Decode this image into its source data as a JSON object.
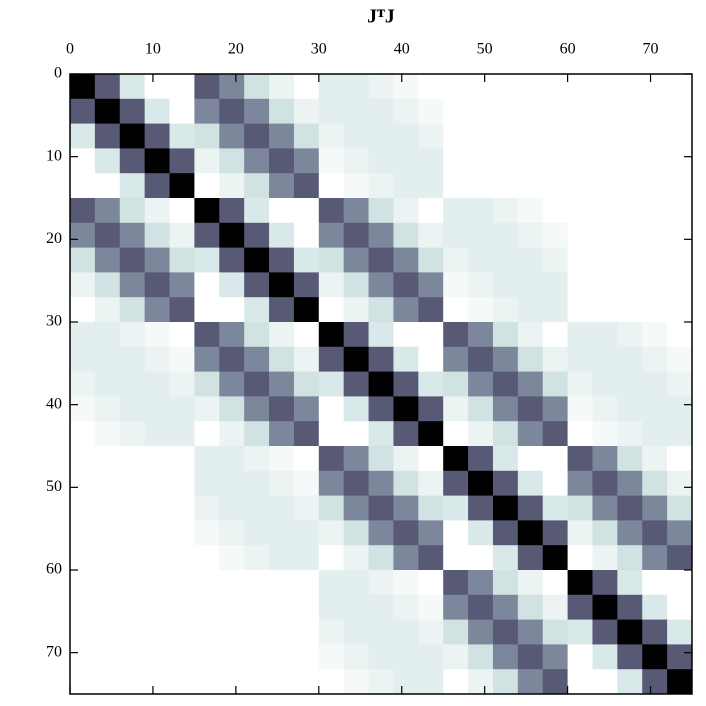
{
  "chart_data": {
    "type": "heatmap",
    "title": "JᵀJ",
    "colormap": "bone_r",
    "xlim": [
      0,
      75
    ],
    "ylim": [
      75,
      0
    ],
    "xticks": [
      0,
      10,
      20,
      30,
      40,
      50,
      60,
      70
    ],
    "yticks": [
      0,
      10,
      20,
      30,
      40,
      50,
      60,
      70
    ],
    "z": [
      [
        1,
        0.7,
        0.2,
        0,
        0,
        0.7,
        0.55,
        0.25,
        0.1,
        0,
        0.15,
        0.15,
        0.1,
        0.05,
        0,
        0,
        0,
        0,
        0,
        0,
        0,
        0,
        0,
        0,
        0
      ],
      [
        0.7,
        1,
        0.7,
        0.2,
        0,
        0.55,
        0.7,
        0.55,
        0.25,
        0.1,
        0.15,
        0.15,
        0.15,
        0.1,
        0.05,
        0,
        0,
        0,
        0,
        0,
        0,
        0,
        0,
        0,
        0
      ],
      [
        0.2,
        0.7,
        1,
        0.7,
        0.2,
        0.25,
        0.55,
        0.7,
        0.55,
        0.25,
        0.1,
        0.15,
        0.15,
        0.15,
        0.1,
        0,
        0,
        0,
        0,
        0,
        0,
        0,
        0,
        0,
        0
      ],
      [
        0,
        0.2,
        0.7,
        1,
        0.7,
        0.1,
        0.25,
        0.55,
        0.7,
        0.55,
        0.05,
        0.1,
        0.15,
        0.15,
        0.15,
        0,
        0,
        0,
        0,
        0,
        0,
        0,
        0,
        0,
        0
      ],
      [
        0,
        0,
        0.2,
        0.7,
        1,
        0,
        0.1,
        0.25,
        0.55,
        0.7,
        0,
        0.05,
        0.1,
        0.15,
        0.15,
        0,
        0,
        0,
        0,
        0,
        0,
        0,
        0,
        0,
        0
      ],
      [
        0.7,
        0.55,
        0.25,
        0.1,
        0,
        1,
        0.7,
        0.2,
        0,
        0,
        0.7,
        0.55,
        0.25,
        0.1,
        0,
        0.15,
        0.15,
        0.1,
        0.05,
        0,
        0,
        0,
        0,
        0,
        0
      ],
      [
        0.55,
        0.7,
        0.55,
        0.25,
        0.1,
        0.7,
        1,
        0.7,
        0.2,
        0,
        0.55,
        0.7,
        0.55,
        0.25,
        0.1,
        0.15,
        0.15,
        0.15,
        0.1,
        0.05,
        0,
        0,
        0,
        0,
        0
      ],
      [
        0.25,
        0.55,
        0.7,
        0.55,
        0.25,
        0.2,
        0.7,
        1,
        0.7,
        0.2,
        0.25,
        0.55,
        0.7,
        0.55,
        0.25,
        0.1,
        0.15,
        0.15,
        0.15,
        0.1,
        0,
        0,
        0,
        0,
        0
      ],
      [
        0.1,
        0.25,
        0.55,
        0.7,
        0.55,
        0,
        0.2,
        0.7,
        1,
        0.7,
        0.1,
        0.25,
        0.55,
        0.7,
        0.55,
        0.05,
        0.1,
        0.15,
        0.15,
        0.15,
        0,
        0,
        0,
        0,
        0
      ],
      [
        0,
        0.1,
        0.25,
        0.55,
        0.7,
        0,
        0,
        0.2,
        0.7,
        1,
        0,
        0.1,
        0.25,
        0.55,
        0.7,
        0,
        0.05,
        0.1,
        0.15,
        0.15,
        0,
        0,
        0,
        0,
        0
      ],
      [
        0.15,
        0.15,
        0.1,
        0.05,
        0,
        0.7,
        0.55,
        0.25,
        0.1,
        0,
        1,
        0.7,
        0.2,
        0,
        0,
        0.7,
        0.55,
        0.25,
        0.1,
        0,
        0.15,
        0.15,
        0.1,
        0.05,
        0
      ],
      [
        0.15,
        0.15,
        0.15,
        0.1,
        0.05,
        0.55,
        0.7,
        0.55,
        0.25,
        0.1,
        0.7,
        1,
        0.7,
        0.2,
        0,
        0.55,
        0.7,
        0.55,
        0.25,
        0.1,
        0.15,
        0.15,
        0.15,
        0.1,
        0.05
      ],
      [
        0.1,
        0.15,
        0.15,
        0.15,
        0.1,
        0.25,
        0.55,
        0.7,
        0.55,
        0.25,
        0.2,
        0.7,
        1,
        0.7,
        0.2,
        0.25,
        0.55,
        0.7,
        0.55,
        0.25,
        0.1,
        0.15,
        0.15,
        0.15,
        0.1
      ],
      [
        0.05,
        0.1,
        0.15,
        0.15,
        0.15,
        0.1,
        0.25,
        0.55,
        0.7,
        0.55,
        0,
        0.2,
        0.7,
        1,
        0.7,
        0.1,
        0.25,
        0.55,
        0.7,
        0.55,
        0.05,
        0.1,
        0.15,
        0.15,
        0.15
      ],
      [
        0,
        0.05,
        0.1,
        0.15,
        0.15,
        0,
        0.1,
        0.25,
        0.55,
        0.7,
        0,
        0,
        0.2,
        0.7,
        1,
        0,
        0.1,
        0.25,
        0.55,
        0.7,
        0,
        0.05,
        0.1,
        0.15,
        0.15
      ],
      [
        0,
        0,
        0,
        0,
        0,
        0.15,
        0.15,
        0.1,
        0.05,
        0,
        0.7,
        0.55,
        0.25,
        0.1,
        0,
        1,
        0.7,
        0.2,
        0,
        0,
        0.7,
        0.55,
        0.25,
        0.1,
        0
      ],
      [
        0,
        0,
        0,
        0,
        0,
        0.15,
        0.15,
        0.15,
        0.1,
        0.05,
        0.55,
        0.7,
        0.55,
        0.25,
        0.1,
        0.7,
        1,
        0.7,
        0.2,
        0,
        0.55,
        0.7,
        0.55,
        0.25,
        0.1
      ],
      [
        0,
        0,
        0,
        0,
        0,
        0.1,
        0.15,
        0.15,
        0.15,
        0.1,
        0.25,
        0.55,
        0.7,
        0.55,
        0.25,
        0.2,
        0.7,
        1,
        0.7,
        0.2,
        0.25,
        0.55,
        0.7,
        0.55,
        0.25
      ],
      [
        0,
        0,
        0,
        0,
        0,
        0.05,
        0.1,
        0.15,
        0.15,
        0.15,
        0.1,
        0.25,
        0.55,
        0.7,
        0.55,
        0,
        0.2,
        0.7,
        1,
        0.7,
        0.1,
        0.25,
        0.55,
        0.7,
        0.55
      ],
      [
        0,
        0,
        0,
        0,
        0,
        0,
        0.05,
        0.1,
        0.15,
        0.15,
        0,
        0.1,
        0.25,
        0.55,
        0.7,
        0,
        0,
        0.2,
        0.7,
        1,
        0,
        0.1,
        0.25,
        0.55,
        0.7
      ],
      [
        0,
        0,
        0,
        0,
        0,
        0,
        0,
        0,
        0,
        0,
        0.15,
        0.15,
        0.1,
        0.05,
        0,
        0.7,
        0.55,
        0.25,
        0.1,
        0,
        1,
        0.7,
        0.2,
        0,
        0
      ],
      [
        0,
        0,
        0,
        0,
        0,
        0,
        0,
        0,
        0,
        0,
        0.15,
        0.15,
        0.15,
        0.1,
        0.05,
        0.55,
        0.7,
        0.55,
        0.25,
        0.1,
        0.7,
        1,
        0.7,
        0.2,
        0
      ],
      [
        0,
        0,
        0,
        0,
        0,
        0,
        0,
        0,
        0,
        0,
        0.1,
        0.15,
        0.15,
        0.15,
        0.1,
        0.25,
        0.55,
        0.7,
        0.55,
        0.25,
        0.2,
        0.7,
        1,
        0.7,
        0.2
      ],
      [
        0,
        0,
        0,
        0,
        0,
        0,
        0,
        0,
        0,
        0,
        0.05,
        0.1,
        0.15,
        0.15,
        0.15,
        0.1,
        0.25,
        0.55,
        0.7,
        0.55,
        0,
        0.2,
        0.7,
        1,
        0.7
      ],
      [
        0,
        0,
        0,
        0,
        0,
        0,
        0,
        0,
        0,
        0,
        0,
        0.05,
        0.1,
        0.15,
        0.15,
        0,
        0.1,
        0.25,
        0.55,
        0.7,
        0,
        0,
        0.2,
        0.7,
        1
      ]
    ]
  }
}
